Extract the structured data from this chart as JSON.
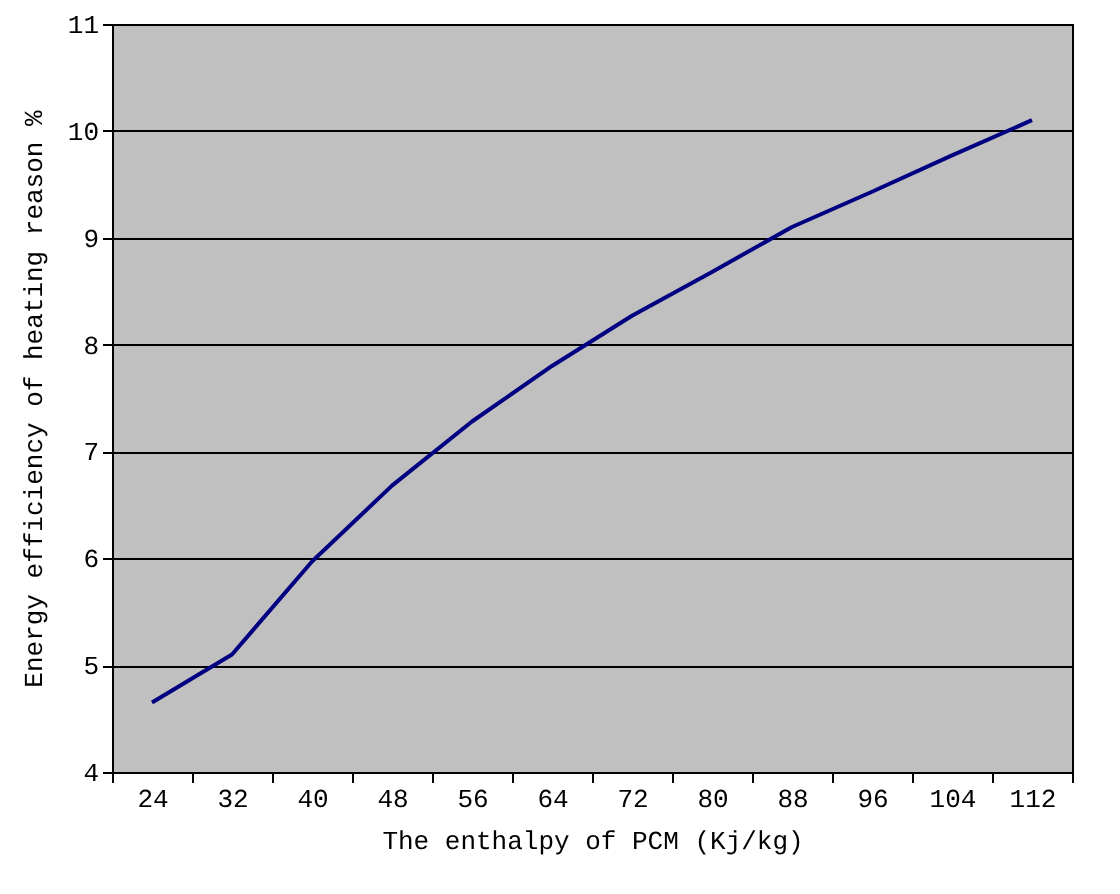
{
  "chart_data": {
    "type": "line",
    "xlabel": "The enthalpy of PCM (Kj/kg)",
    "ylabel": "Energy efficiency of heating reason %",
    "categories": [
      "24",
      "32",
      "40",
      "48",
      "56",
      "64",
      "72",
      "80",
      "88",
      "96",
      "104",
      "112"
    ],
    "series": [
      {
        "color": "#000080",
        "values": [
          4.65,
          5.1,
          5.97,
          6.68,
          7.28,
          7.8,
          8.27,
          8.68,
          9.1,
          9.43,
          9.77,
          10.1
        ]
      }
    ],
    "ylim": [
      4,
      11
    ],
    "yticks": [
      4,
      5,
      6,
      7,
      8,
      9,
      10,
      11
    ],
    "grid": "y",
    "legend": false,
    "marker": "none",
    "line_style": "solid"
  }
}
